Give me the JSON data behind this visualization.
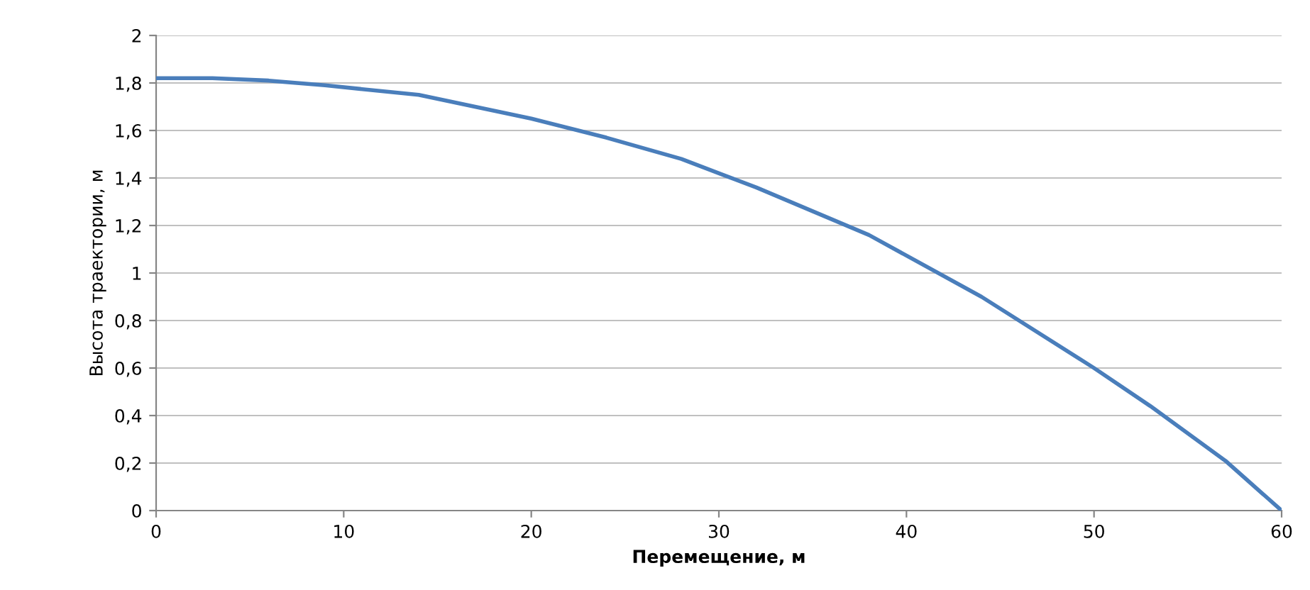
{
  "chart_data": {
    "type": "line",
    "xlabel": "Перемещение, м",
    "ylabel": "Высота траектории, м",
    "x": [
      0,
      3,
      6,
      9,
      14,
      20,
      24,
      28,
      32,
      38,
      44,
      50,
      53,
      57,
      60
    ],
    "series": [
      {
        "color": "#4a7ebb",
        "values": [
          1.82,
          1.82,
          1.81,
          1.79,
          1.75,
          1.65,
          1.57,
          1.48,
          1.36,
          1.16,
          0.9,
          0.6,
          0.44,
          0.21,
          0.0
        ]
      }
    ],
    "xlim": [
      0,
      60
    ],
    "xticks": [
      0,
      10,
      20,
      30,
      40,
      50,
      60
    ],
    "ylim": [
      0,
      2
    ],
    "yticks": [
      0,
      {
        "value": 0.2,
        "label": "0,2"
      },
      {
        "value": 0.4,
        "label": "0,4"
      },
      {
        "value": 0.6,
        "label": "0,6"
      },
      {
        "value": 0.8,
        "label": "0,8"
      },
      1,
      {
        "value": 1.2,
        "label": "1,2"
      },
      {
        "value": 1.4,
        "label": "1,4"
      },
      {
        "value": 1.6,
        "label": "1,6"
      },
      {
        "value": 1.8,
        "label": "1,8"
      },
      2
    ],
    "grid": "y",
    "legend": false,
    "marker": "none",
    "line_style": "solid"
  }
}
